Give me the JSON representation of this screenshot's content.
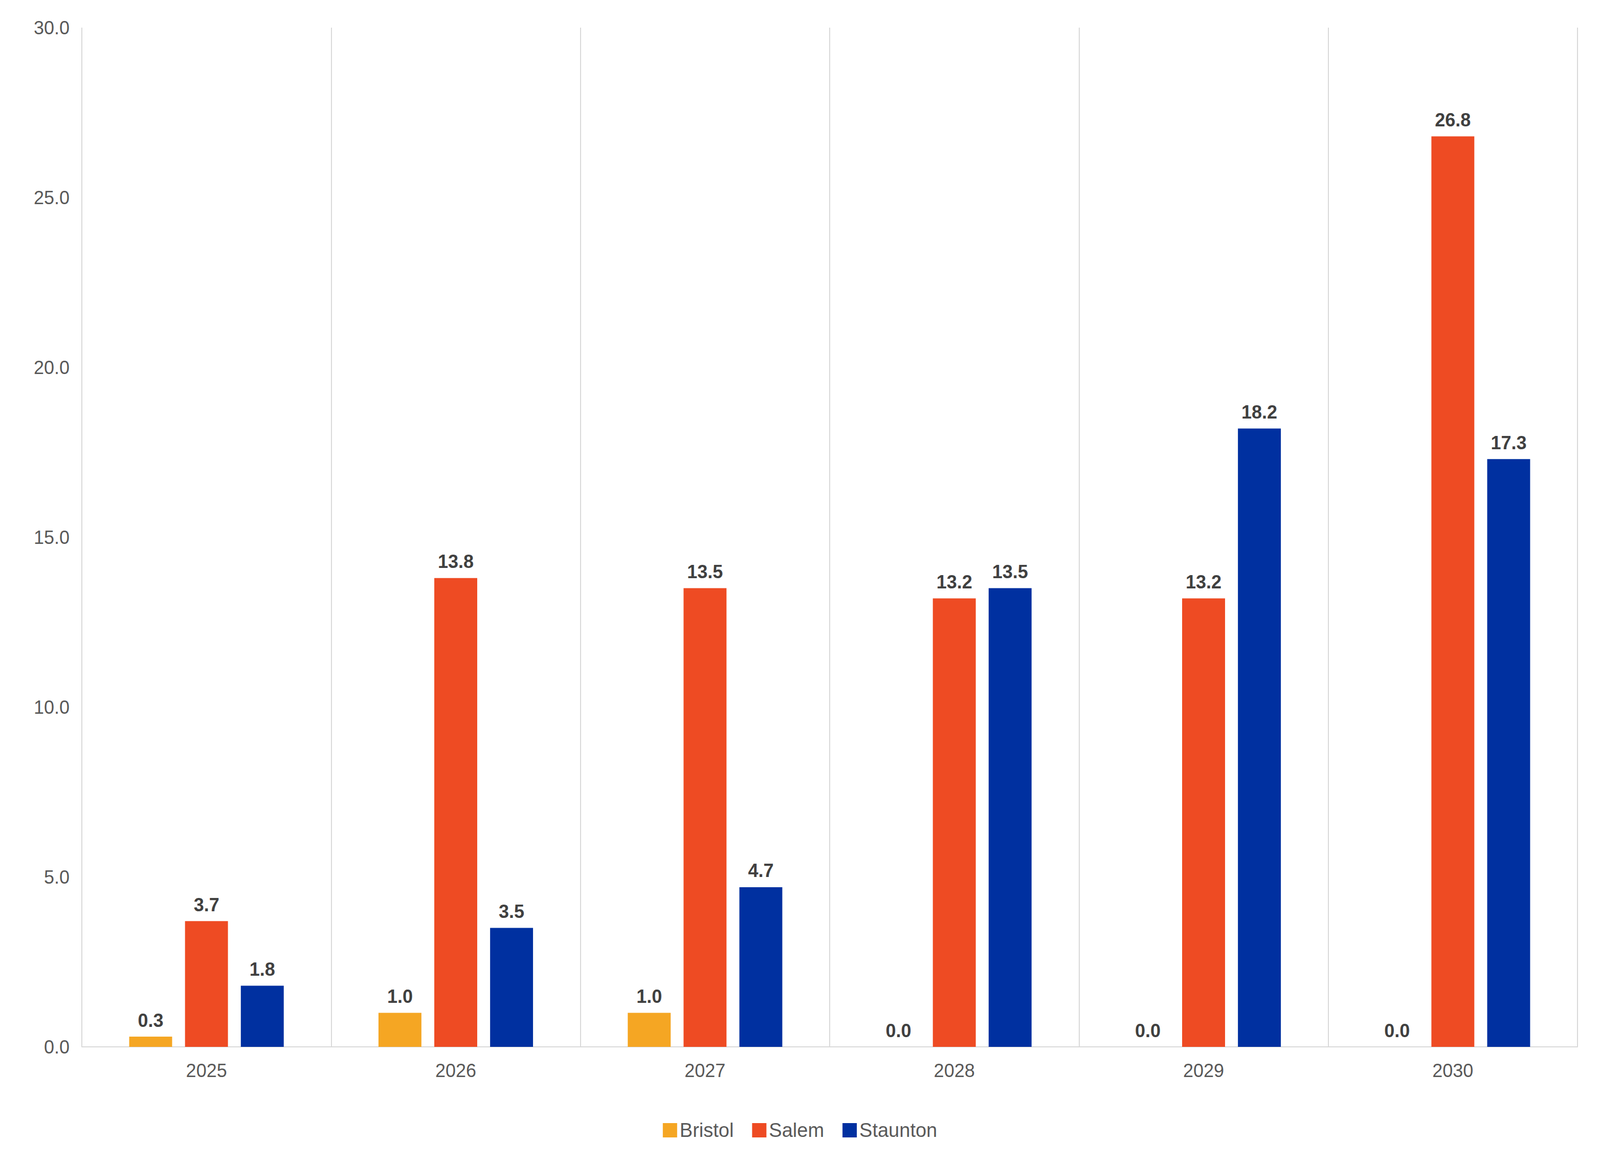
{
  "chart_data": {
    "type": "bar",
    "categories": [
      "2025",
      "2026",
      "2027",
      "2028",
      "2029",
      "2030"
    ],
    "series": [
      {
        "name": "Bristol",
        "color": "#F5A623",
        "values": [
          0.3,
          1.0,
          1.0,
          0.0,
          0.0,
          0.0
        ],
        "value_labels": [
          "0.3",
          "1.0",
          "1.0",
          "0.0",
          "0.0",
          "0.0"
        ]
      },
      {
        "name": "Salem",
        "color": "#EE4B23",
        "values": [
          3.7,
          13.8,
          13.5,
          13.2,
          13.2,
          26.8
        ],
        "value_labels": [
          "3.7",
          "13.8",
          "13.5",
          "13.2",
          "13.2",
          "26.8"
        ]
      },
      {
        "name": "Staunton",
        "color": "#0030A0",
        "values": [
          1.8,
          3.5,
          4.7,
          13.5,
          18.2,
          17.3
        ],
        "value_labels": [
          "1.8",
          "3.5",
          "4.7",
          "13.5",
          "18.2",
          "17.3"
        ]
      }
    ],
    "ylim": [
      0,
      30
    ],
    "yticks": [
      {
        "value": 0,
        "label": "0.0"
      },
      {
        "value": 5,
        "label": "5.0"
      },
      {
        "value": 10,
        "label": "10.0"
      },
      {
        "value": 15,
        "label": "15.0"
      },
      {
        "value": 20,
        "label": "20.0"
      },
      {
        "value": 25,
        "label": "25.0"
      },
      {
        "value": 30,
        "label": "30.0"
      }
    ],
    "grid": true,
    "legend": "bottom",
    "data_labels": true
  }
}
